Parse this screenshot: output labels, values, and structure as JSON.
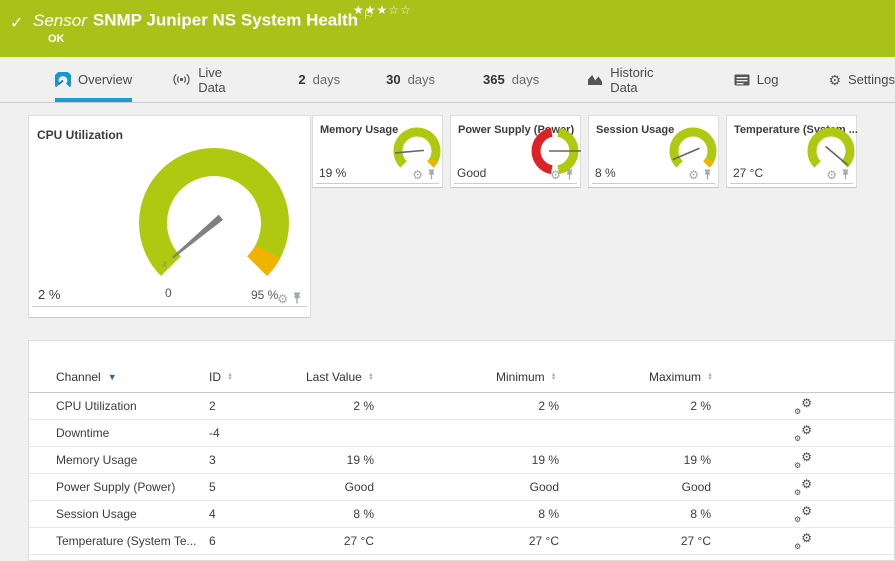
{
  "header": {
    "status_icon": "✓",
    "sensor_label": "Sensor",
    "sensor_name": "SNMP Juniper NS System Health",
    "flag": "⚐",
    "stars_filled": "★★★",
    "stars_empty": "☆☆",
    "status": "OK"
  },
  "tabs": [
    {
      "label": "Overview",
      "icon": "gauge-icon",
      "active": true
    },
    {
      "label": "Live Data",
      "icon": "broadcast-icon"
    },
    {
      "num": "2",
      "unit": "days"
    },
    {
      "num": "30",
      "unit": "days"
    },
    {
      "num": "365",
      "unit": "days"
    },
    {
      "label": "Historic Data",
      "icon": "area-chart-icon"
    },
    {
      "label": "Log",
      "icon": "log-icon"
    },
    {
      "label": "Settings",
      "icon": "gear-icon"
    }
  ],
  "gauges": {
    "primary": {
      "title": "CPU Utilization",
      "value": "2 %",
      "scale_start_label": "0",
      "scale_end_label": "95 %",
      "avg_marker": "x",
      "needle_angle": -130
    },
    "mini": [
      {
        "title": "Memory Usage",
        "value": "19 %",
        "needle_angle": -95
      },
      {
        "title": "Power Supply (Power)",
        "value": "Good",
        "needle_angle": 90
      },
      {
        "title": "Session Usage",
        "value": "8 %",
        "needle_angle": -113
      },
      {
        "title": "Temperature (System ...",
        "value": "27 °C",
        "needle_angle": 130
      }
    ]
  },
  "colors": {
    "status_ok_green": "#a9c21a",
    "gauge_green": "#aec90f",
    "gauge_warning_yellow": "#f0b400",
    "gauge_error_red": "#dc2127",
    "active_tab_blue": "#1a9cd3"
  },
  "table": {
    "columns": [
      {
        "label": "Channel",
        "sorted": "desc"
      },
      {
        "label": "ID"
      },
      {
        "label": "Last Value"
      },
      {
        "label": "Minimum"
      },
      {
        "label": "Maximum"
      }
    ],
    "rows": [
      {
        "channel": "CPU Utilization",
        "id": "2",
        "last": "2 %",
        "min": "2 %",
        "max": "2 %"
      },
      {
        "channel": "Downtime",
        "id": "-4",
        "last": "",
        "min": "",
        "max": ""
      },
      {
        "channel": "Memory Usage",
        "id": "3",
        "last": "19 %",
        "min": "19 %",
        "max": "19 %"
      },
      {
        "channel": "Power Supply (Power)",
        "id": "5",
        "last": "Good",
        "min": "Good",
        "max": "Good"
      },
      {
        "channel": "Session Usage",
        "id": "4",
        "last": "8 %",
        "min": "8 %",
        "max": "8 %"
      },
      {
        "channel": "Temperature (System Te...",
        "id": "6",
        "last": "27 °C",
        "min": "27 °C",
        "max": "27 °C"
      }
    ]
  }
}
